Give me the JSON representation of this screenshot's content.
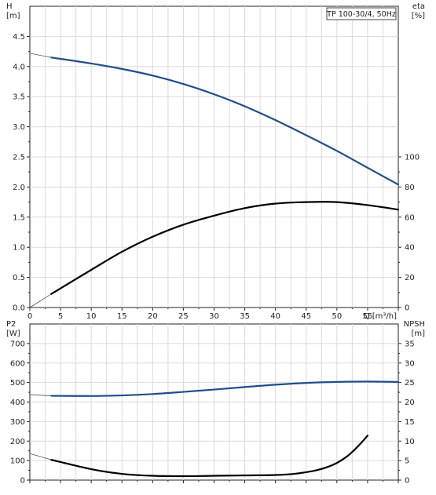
{
  "chart_data": [
    {
      "type": "line",
      "title": "TP 100-30/4, 50Hz",
      "xlabel": "Q [m³/h]",
      "ylabel": "H\n[m]",
      "y2label": "eta\n[%]",
      "xlim": [
        0,
        60
      ],
      "ylim": [
        0,
        5
      ],
      "y2lim": [
        0,
        200
      ],
      "x_ticks": [
        0,
        5,
        10,
        15,
        20,
        25,
        30,
        35,
        40,
        45,
        50,
        55
      ],
      "x_tick_labels": [
        "0",
        "5",
        "10",
        "15",
        "20",
        "25",
        "30",
        "35",
        "40",
        "45",
        "50",
        "55"
      ],
      "y_ticks": [
        0.0,
        0.5,
        1.0,
        1.5,
        2.0,
        2.5,
        3.0,
        3.5,
        4.0,
        4.5
      ],
      "y_tick_labels": [
        "0.0",
        "0.5",
        "1.0",
        "1.5",
        "2.0",
        "2.5",
        "3.0",
        "3.5",
        "4.0",
        "4.5"
      ],
      "y2_ticks": [
        0,
        20,
        40,
        60,
        80,
        100
      ],
      "y2_tick_labels": [
        "0",
        "20",
        "40",
        "60",
        "80",
        "100"
      ],
      "grid": true,
      "series": [
        {
          "axis": "left",
          "color": "#1f4e8c",
          "x": [
            3.5,
            10,
            15,
            20,
            25,
            30,
            35,
            40,
            45,
            50,
            55,
            60
          ],
          "values": [
            4.15,
            4.05,
            3.96,
            3.85,
            3.71,
            3.54,
            3.34,
            3.11,
            2.86,
            2.6,
            2.32,
            2.04
          ],
          "extension": {
            "x": [
              0,
              3.5
            ],
            "values": [
              4.22,
              4.15
            ]
          }
        },
        {
          "axis": "right",
          "color": "#000000",
          "x": [
            3.5,
            10,
            15,
            20,
            25,
            30,
            35,
            40,
            45,
            50,
            55,
            60
          ],
          "values": [
            9,
            25,
            37,
            47,
            55,
            61,
            66,
            69,
            70,
            70,
            68,
            65
          ],
          "extension": {
            "x": [
              0,
              3.5
            ],
            "values": [
              0,
              9
            ]
          }
        }
      ]
    },
    {
      "type": "line",
      "xlabel": "",
      "ylabel": "P2\n[W]",
      "y2label": "NPSH\n[m]",
      "xlim": [
        0,
        60
      ],
      "ylim": [
        0,
        800
      ],
      "y2lim": [
        0,
        40
      ],
      "y_ticks": [
        0,
        100,
        200,
        300,
        400,
        500,
        600,
        700
      ],
      "y_tick_labels": [
        "0",
        "100",
        "200",
        "300",
        "400",
        "500",
        "600",
        "700"
      ],
      "y2_ticks": [
        0,
        5,
        10,
        15,
        20,
        25,
        30,
        35
      ],
      "y2_tick_labels": [
        "0",
        "5",
        "10",
        "15",
        "20",
        "25",
        "30",
        "35"
      ],
      "grid": true,
      "series": [
        {
          "axis": "left",
          "color": "#1f4e8c",
          "x": [
            3.5,
            10,
            15,
            20,
            25,
            30,
            35,
            40,
            45,
            50,
            55,
            60
          ],
          "values": [
            432,
            431,
            434,
            441,
            452,
            464,
            477,
            489,
            498,
            503,
            505,
            503
          ],
          "extension": {
            "x": [
              0,
              3.5
            ],
            "values": [
              438,
              432
            ]
          }
        },
        {
          "axis": "right",
          "color": "#000000",
          "x": [
            3.5,
            10,
            15,
            20,
            25,
            30,
            35,
            40,
            43,
            46,
            48,
            50,
            52,
            54,
            55
          ],
          "values": [
            5.2,
            2.8,
            1.6,
            1.1,
            1.0,
            1.1,
            1.2,
            1.3,
            1.6,
            2.3,
            3.1,
            4.4,
            6.5,
            9.6,
            11.4
          ],
          "extension": {
            "x": [
              0,
              3.5
            ],
            "values": [
              6.8,
              5.2
            ]
          }
        }
      ]
    }
  ]
}
